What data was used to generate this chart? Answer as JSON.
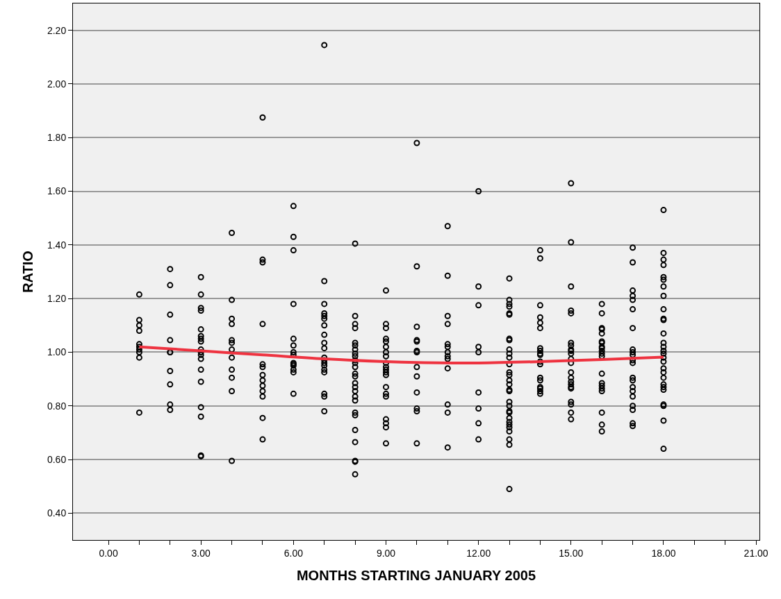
{
  "chart_data": {
    "type": "scatter",
    "xlabel": "MONTHS STARTING JANUARY 2005",
    "ylabel": "RATIO",
    "xlim": [
      -1.15,
      21.11
    ],
    "ylim": [
      0.3,
      2.3
    ],
    "xticks": [
      {
        "value": 0,
        "label": "0.00"
      },
      {
        "value": 1,
        "label": null
      },
      {
        "value": 2,
        "label": null
      },
      {
        "value": 3,
        "label": "3.00"
      },
      {
        "value": 4,
        "label": null
      },
      {
        "value": 5,
        "label": null
      },
      {
        "value": 6,
        "label": "6.00"
      },
      {
        "value": 7,
        "label": null
      },
      {
        "value": 8,
        "label": null
      },
      {
        "value": 9,
        "label": "9.00"
      },
      {
        "value": 10,
        "label": null
      },
      {
        "value": 11,
        "label": null
      },
      {
        "value": 12,
        "label": "12.00"
      },
      {
        "value": 13,
        "label": null
      },
      {
        "value": 14,
        "label": null
      },
      {
        "value": 15,
        "label": "15.00"
      },
      {
        "value": 16,
        "label": null
      },
      {
        "value": 17,
        "label": null
      },
      {
        "value": 18,
        "label": "18.00"
      },
      {
        "value": 19,
        "label": null
      },
      {
        "value": 20,
        "label": null
      },
      {
        "value": 21,
        "label": "21.00"
      }
    ],
    "yticks": [
      {
        "value": 0.4,
        "label": "0.40"
      },
      {
        "value": 0.6,
        "label": "0.60"
      },
      {
        "value": 0.8,
        "label": "0.80"
      },
      {
        "value": 1.0,
        "label": "1.00"
      },
      {
        "value": 1.2,
        "label": "1.20"
      },
      {
        "value": 1.4,
        "label": "1.40"
      },
      {
        "value": 1.6,
        "label": "1.60"
      },
      {
        "value": 1.8,
        "label": "1.80"
      },
      {
        "value": 2.0,
        "label": "2.00"
      },
      {
        "value": 2.2,
        "label": "2.20"
      }
    ],
    "grid": "y",
    "series": [
      {
        "marker": "circle",
        "color": "#000000",
        "x": [
          1,
          1,
          1,
          1,
          1,
          1,
          1,
          1,
          1,
          1,
          2,
          2,
          2,
          2,
          2,
          2,
          2,
          2,
          2,
          2,
          3,
          3,
          3,
          3,
          3,
          3,
          3,
          3,
          3,
          3,
          3,
          3,
          3,
          3,
          3,
          3,
          3,
          3,
          4,
          4,
          4,
          4,
          4,
          4,
          4,
          4,
          4,
          4,
          4,
          4,
          5,
          5,
          5,
          5,
          5,
          5,
          5,
          5,
          5,
          5,
          5,
          5,
          5,
          6,
          6,
          6,
          6,
          6,
          6,
          6,
          6,
          6,
          6,
          6,
          6,
          6,
          6,
          7,
          7,
          7,
          7,
          7,
          7,
          7,
          7,
          7,
          7,
          7,
          7,
          7,
          7,
          7,
          7,
          7,
          7,
          7,
          8,
          8,
          8,
          8,
          8,
          8,
          8,
          8,
          8,
          8,
          8,
          8,
          8,
          8,
          8,
          8,
          8,
          8,
          8,
          8,
          8,
          8,
          8,
          8,
          8,
          8,
          9,
          9,
          9,
          9,
          9,
          9,
          9,
          9,
          9,
          9,
          9,
          9,
          9,
          9,
          9,
          9,
          9,
          9,
          9,
          9,
          10,
          10,
          10,
          10,
          10,
          10,
          10,
          10,
          10,
          10,
          10,
          10,
          10,
          11,
          11,
          11,
          11,
          11,
          11,
          11,
          11,
          11,
          11,
          11,
          11,
          11,
          12,
          12,
          12,
          12,
          12,
          12,
          12,
          12,
          12,
          13,
          13,
          13,
          13,
          13,
          13,
          13,
          13,
          13,
          13,
          13,
          13,
          13,
          13,
          13,
          13,
          13,
          13,
          13,
          13,
          13,
          13,
          13,
          13,
          13,
          13,
          13,
          13,
          13,
          13,
          14,
          14,
          14,
          14,
          14,
          14,
          14,
          14,
          14,
          14,
          14,
          14,
          14,
          14,
          14,
          14,
          14,
          14,
          15,
          15,
          15,
          15,
          15,
          15,
          15,
          15,
          15,
          15,
          15,
          15,
          15,
          15,
          15,
          15,
          15,
          15,
          15,
          15,
          15,
          15,
          16,
          16,
          16,
          16,
          16,
          16,
          16,
          16,
          16,
          16,
          16,
          16,
          16,
          16,
          16,
          16,
          16,
          16,
          16,
          16,
          17,
          17,
          17,
          17,
          17,
          17,
          17,
          17,
          17,
          17,
          17,
          17,
          17,
          17,
          17,
          17,
          17,
          17,
          17,
          17,
          17,
          18,
          18,
          18,
          18,
          18,
          18,
          18,
          18,
          18,
          18,
          18,
          18,
          18,
          18,
          18,
          18,
          18,
          18,
          18,
          18,
          18,
          18,
          18,
          18,
          18,
          18,
          18,
          18
        ],
        "values": [
          1.215,
          1.12,
          1.1,
          1.08,
          1.03,
          1.02,
          1.01,
          1.0,
          0.98,
          0.775,
          1.31,
          1.25,
          1.14,
          1.045,
          1.0,
          1.0,
          0.93,
          0.88,
          0.805,
          0.785,
          1.28,
          1.215,
          1.165,
          1.155,
          1.085,
          1.06,
          1.05,
          1.04,
          1.01,
          1.0,
          0.99,
          0.975,
          0.935,
          0.89,
          0.795,
          0.76,
          0.615,
          0.612,
          1.445,
          1.195,
          1.125,
          1.105,
          1.045,
          1.035,
          1.01,
          0.98,
          0.935,
          0.905,
          0.855,
          0.595,
          1.875,
          1.345,
          1.335,
          1.105,
          0.955,
          0.945,
          0.915,
          0.895,
          0.875,
          0.855,
          0.835,
          0.755,
          0.675,
          1.545,
          1.43,
          1.38,
          1.18,
          1.05,
          1.025,
          1.0,
          0.99,
          0.96,
          0.955,
          0.95,
          0.935,
          0.925,
          0.845,
          2.145,
          1.265,
          1.18,
          1.145,
          1.135,
          1.125,
          1.1,
          1.065,
          1.035,
          1.015,
          0.98,
          0.97,
          0.96,
          0.95,
          0.935,
          0.925,
          0.845,
          0.835,
          0.78,
          1.405,
          1.135,
          1.105,
          1.09,
          1.035,
          1.025,
          1.01,
          0.995,
          0.985,
          0.97,
          0.96,
          0.945,
          0.92,
          0.91,
          0.885,
          0.87,
          0.855,
          0.835,
          0.82,
          0.775,
          0.765,
          0.71,
          0.665,
          0.595,
          0.592,
          0.545,
          1.23,
          1.105,
          1.09,
          1.05,
          1.04,
          1.02,
          1.0,
          0.985,
          0.96,
          0.945,
          0.935,
          0.925,
          0.915,
          0.87,
          0.845,
          0.835,
          0.75,
          0.735,
          0.72,
          0.66,
          1.78,
          1.32,
          1.095,
          1.045,
          1.04,
          1.005,
          1.0,
          0.945,
          0.91,
          0.85,
          0.79,
          0.78,
          0.66,
          1.47,
          1.285,
          1.135,
          1.105,
          1.03,
          1.02,
          1.0,
          0.985,
          0.975,
          0.94,
          0.805,
          0.775,
          0.645,
          1.6,
          1.245,
          1.175,
          1.02,
          1.0,
          0.85,
          0.79,
          0.735,
          0.675,
          1.275,
          1.195,
          1.18,
          1.17,
          1.145,
          1.14,
          1.05,
          1.045,
          1.01,
          0.995,
          0.98,
          0.955,
          0.925,
          0.915,
          0.895,
          0.88,
          0.86,
          0.855,
          0.815,
          0.8,
          0.78,
          0.775,
          0.755,
          0.74,
          0.73,
          0.72,
          0.705,
          0.675,
          0.655,
          0.49,
          1.38,
          1.35,
          1.175,
          1.13,
          1.11,
          1.09,
          1.015,
          1.005,
          0.995,
          0.99,
          0.965,
          0.955,
          0.905,
          0.895,
          0.87,
          0.865,
          0.855,
          0.845,
          1.63,
          1.41,
          1.245,
          1.155,
          1.145,
          1.035,
          1.025,
          1.01,
          1.005,
          0.995,
          0.975,
          0.96,
          0.925,
          0.905,
          0.89,
          0.88,
          0.87,
          0.865,
          0.815,
          0.805,
          0.775,
          0.75,
          1.18,
          1.145,
          1.09,
          1.085,
          1.07,
          1.04,
          1.035,
          1.02,
          1.015,
          1.005,
          0.995,
          0.985,
          0.92,
          0.885,
          0.875,
          0.865,
          0.855,
          0.775,
          0.73,
          0.705,
          1.39,
          1.335,
          1.23,
          1.21,
          1.195,
          1.16,
          1.09,
          1.01,
          1.0,
          0.99,
          0.97,
          0.96,
          0.905,
          0.895,
          0.87,
          0.855,
          0.835,
          0.8,
          0.785,
          0.735,
          0.725,
          1.53,
          1.37,
          1.345,
          1.325,
          1.28,
          1.27,
          1.245,
          1.21,
          1.16,
          1.125,
          1.12,
          1.07,
          1.035,
          1.02,
          1.005,
          0.995,
          0.98,
          0.965,
          0.94,
          0.925,
          0.905,
          0.88,
          0.87,
          0.86,
          0.805,
          0.8,
          0.745,
          0.64
        ]
      },
      {
        "type": "line",
        "marker": "none",
        "line_style": "solid",
        "color": "#ee3340",
        "x": [
          1,
          3,
          5,
          7,
          9,
          10,
          12,
          14,
          16,
          18
        ],
        "values": [
          1.02,
          1.005,
          0.99,
          0.975,
          0.965,
          0.962,
          0.96,
          0.965,
          0.973,
          0.982
        ]
      }
    ]
  }
}
